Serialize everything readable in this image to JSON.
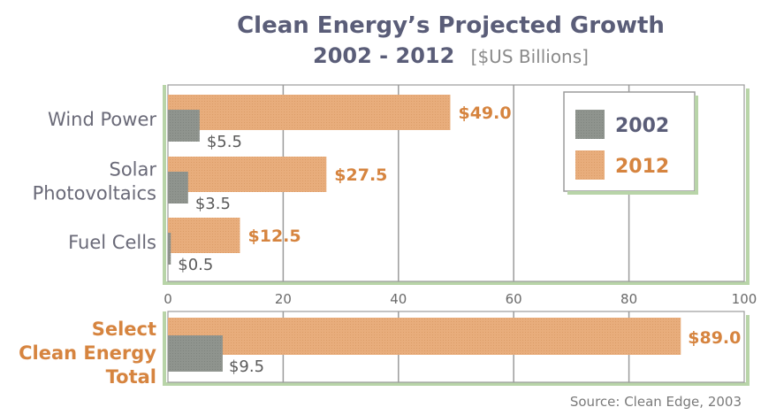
{
  "header": {
    "title": "Clean Energy’s Projected Growth",
    "subtitle_years": "2002 - 2012",
    "subtitle_unit": "[$US Billions]"
  },
  "source": "Source: Clean Edge, 2003",
  "colors": {
    "series_2002": "#8f948e",
    "series_2012": "#e8ad7c",
    "accent_text": "#d6843f",
    "category_text": "#6a6a78",
    "panel_shadow": "#b8d4a8",
    "grid": "#9b9b9b"
  },
  "chart_data": {
    "type": "bar",
    "orientation": "horizontal",
    "xlim": [
      0,
      100
    ],
    "x_ticks": [
      "0",
      "20",
      "40",
      "60",
      "80",
      "100"
    ],
    "grid": true,
    "legend_position": "top-right",
    "legend": [
      {
        "name": "2002"
      },
      {
        "name": "2012"
      }
    ],
    "categories": [
      "Wind Power",
      "Solar\nPhotovoltaics",
      "Fuel Cells"
    ],
    "series": [
      {
        "name": "2002",
        "values": [
          5.5,
          3.5,
          0.5
        ],
        "labels": [
          "$5.5",
          "$3.5",
          "$0.5"
        ]
      },
      {
        "name": "2012",
        "values": [
          49.0,
          27.5,
          12.5
        ],
        "labels": [
          "$49.0",
          "$27.5",
          "$12.5"
        ]
      }
    ],
    "total": {
      "category": "Select\nClean Energy\nTotal",
      "series": [
        {
          "name": "2002",
          "value": 9.5,
          "label": "$9.5"
        },
        {
          "name": "2012",
          "value": 89.0,
          "label": "$89.0"
        }
      ]
    }
  }
}
